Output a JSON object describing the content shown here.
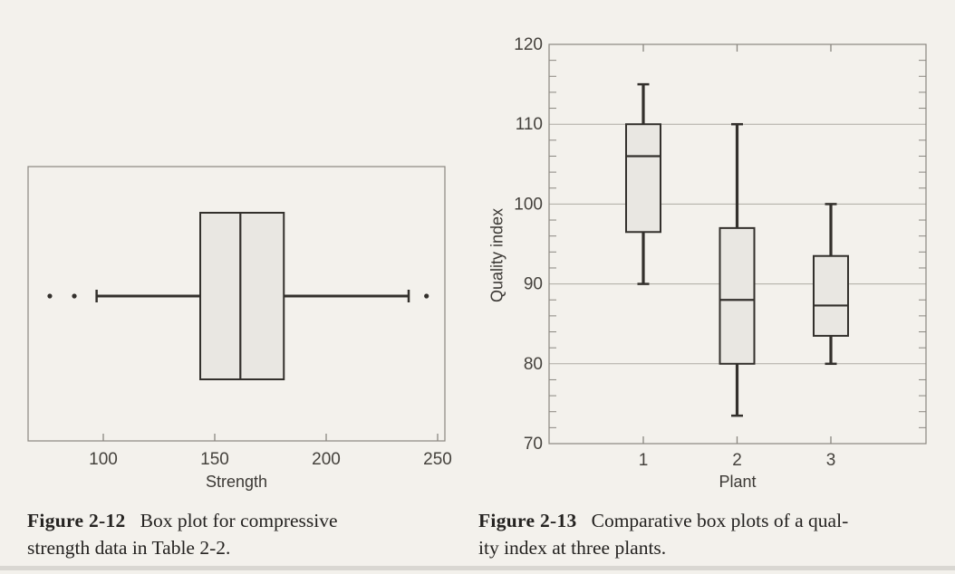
{
  "colors": {
    "paper": "#f3f1ec",
    "frame": "#8a8780",
    "grid": "#aeaba3",
    "ink": "#33302c",
    "box_fill": "#e9e7e2",
    "tick_text": "#45423d",
    "caption_text": "#242220"
  },
  "chart_data": [
    {
      "id": "figure-2-12",
      "type": "boxplot",
      "orientation": "horizontal",
      "caption_label": "Figure 2-12",
      "caption_lines": [
        "Box plot for compressive",
        "strength data in Table 2-2."
      ],
      "xlabel": "Strength",
      "x_ticks": [
        100,
        150,
        200,
        250
      ],
      "xlim": [
        66,
        253
      ],
      "grid": false,
      "series": [
        {
          "name": "compressive strength",
          "whisker_low": 97,
          "q1": 143.5,
          "median": 161.5,
          "q3": 181,
          "whisker_high": 237,
          "outliers": [
            76,
            87,
            245
          ]
        }
      ]
    },
    {
      "id": "figure-2-13",
      "type": "boxplot",
      "orientation": "vertical",
      "caption_label": "Figure 2-13",
      "caption_lines": [
        "Comparative box plots of a qual-",
        "ity index at three plants."
      ],
      "xlabel": "Plant",
      "ylabel": "Quality index",
      "categories": [
        "1",
        "2",
        "3"
      ],
      "y_ticks": [
        70,
        80,
        90,
        100,
        110,
        120
      ],
      "y_minor_tick_step": 2,
      "ylim": [
        70,
        120
      ],
      "grid": "horizontal-at-major-ticks",
      "series": [
        {
          "name": "Plant 1",
          "whisker_low": 90,
          "q1": 96.5,
          "median": 106,
          "q3": 110,
          "whisker_high": 115,
          "outliers": []
        },
        {
          "name": "Plant 2",
          "whisker_low": 73.5,
          "q1": 80,
          "median": 88,
          "q3": 97,
          "whisker_high": 110,
          "outliers": []
        },
        {
          "name": "Plant 3",
          "whisker_low": 80,
          "q1": 83.5,
          "median": 87.3,
          "q3": 93.5,
          "whisker_high": 100,
          "outliers": []
        }
      ]
    }
  ]
}
